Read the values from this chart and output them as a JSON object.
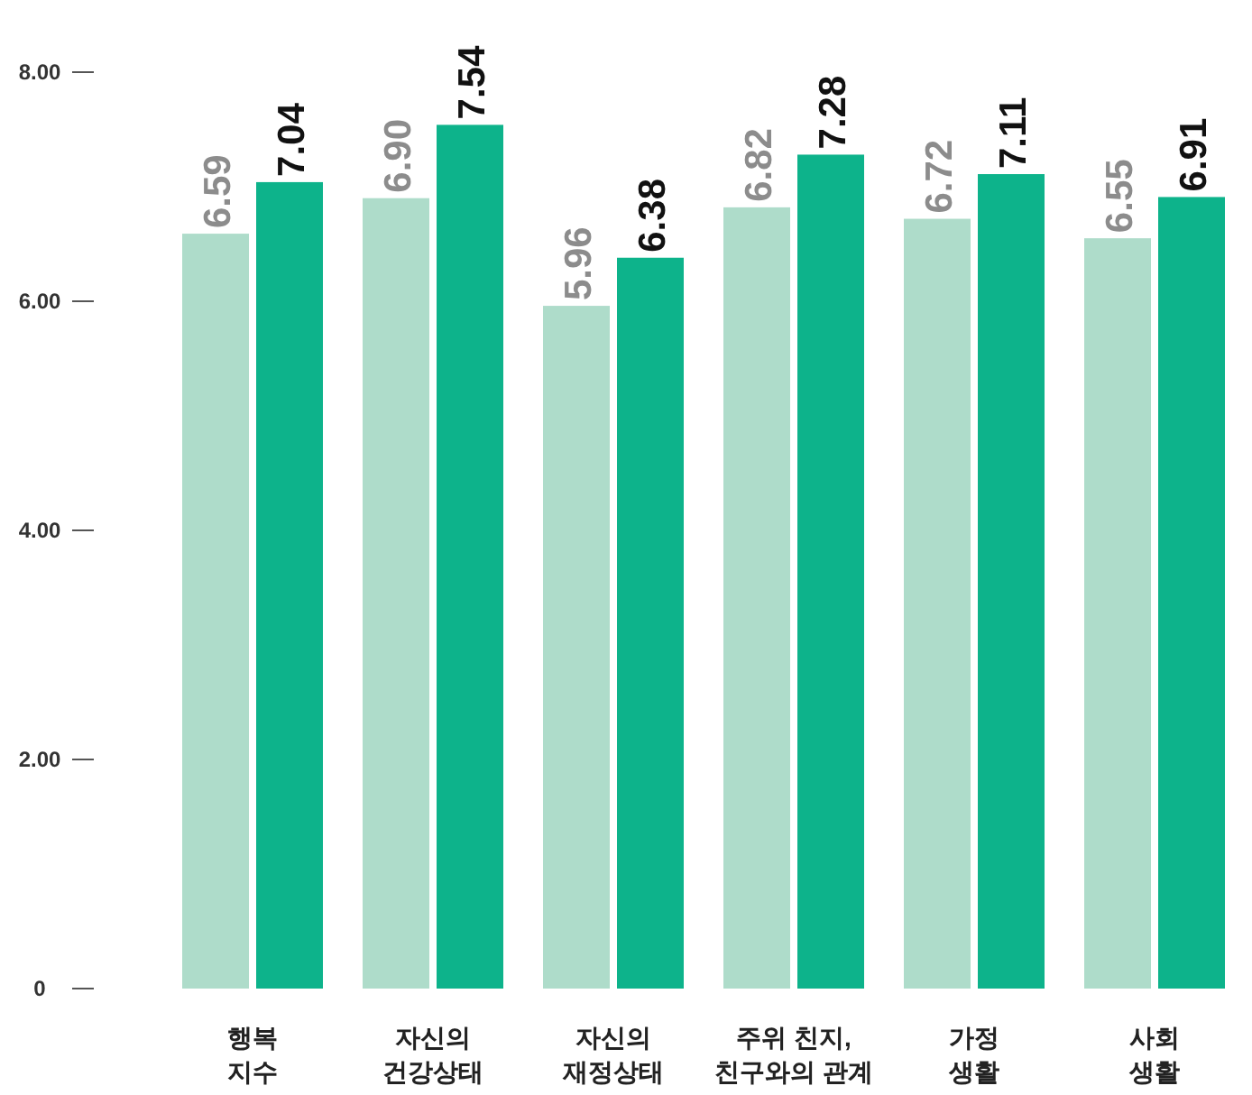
{
  "chart_data": {
    "type": "bar",
    "categories": [
      "행복\n지수",
      "자신의\n건강상태",
      "자신의\n재정상태",
      "주위 친지,\n친구와의 관계",
      "가정\n생활",
      "사회\n생활"
    ],
    "series": [
      {
        "color": "#aedcca",
        "values": [
          6.59,
          6.9,
          5.96,
          6.82,
          6.72,
          6.55
        ],
        "value_labels": [
          "6.59",
          "6.90",
          "5.96",
          "6.82",
          "6.72",
          "6.55"
        ]
      },
      {
        "color": "#0db38b",
        "values": [
          7.04,
          7.54,
          6.38,
          7.28,
          7.11,
          6.91
        ],
        "value_labels": [
          "7.04",
          "7.54",
          "6.38",
          "7.28",
          "7.11",
          "6.91"
        ]
      }
    ],
    "ylim": [
      0,
      8
    ],
    "yticks": [
      0,
      {
        "value": 2,
        "label": "2.00"
      },
      {
        "value": 4,
        "label": "4.00"
      },
      {
        "value": 6,
        "label": "6.00"
      },
      {
        "value": 8,
        "label": "8.00"
      }
    ],
    "grid": false
  }
}
